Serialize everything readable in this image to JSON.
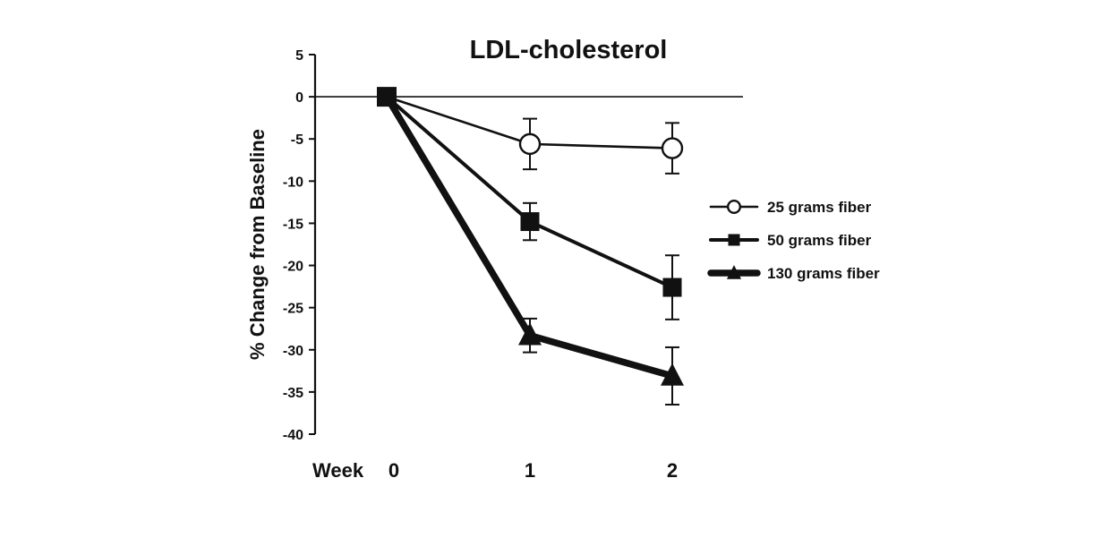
{
  "chart_data": {
    "type": "line",
    "title": "LDL-cholesterol",
    "ylabel": "% Change from Baseline",
    "x_axis_prefix": "Week",
    "categories": [
      "0",
      "1",
      "2"
    ],
    "x": [
      0,
      1,
      2
    ],
    "ylim": [
      -40,
      5
    ],
    "y_ticks": [
      5,
      0,
      -5,
      -10,
      -15,
      -20,
      -25,
      -30,
      -35,
      -40
    ],
    "zero_line": true,
    "grid": false,
    "legend": "right",
    "series": [
      {
        "name": "25 grams fiber",
        "marker": "open-circle",
        "line_weight": "thin",
        "values": [
          0,
          -5.6,
          -6.1
        ],
        "error": [
          0,
          3.0,
          3.0
        ]
      },
      {
        "name": "50 grams fiber",
        "marker": "filled-square",
        "line_weight": "medium",
        "values": [
          0,
          -14.8,
          -22.6
        ],
        "error": [
          0,
          2.2,
          3.8
        ]
      },
      {
        "name": "130 grams fiber",
        "marker": "filled-triangle",
        "line_weight": "thick",
        "values": [
          0,
          -28.3,
          -33.1
        ],
        "error": [
          0,
          2.0,
          3.4
        ]
      }
    ],
    "colors": {
      "line": "#111111",
      "background": "#ffffff"
    }
  }
}
